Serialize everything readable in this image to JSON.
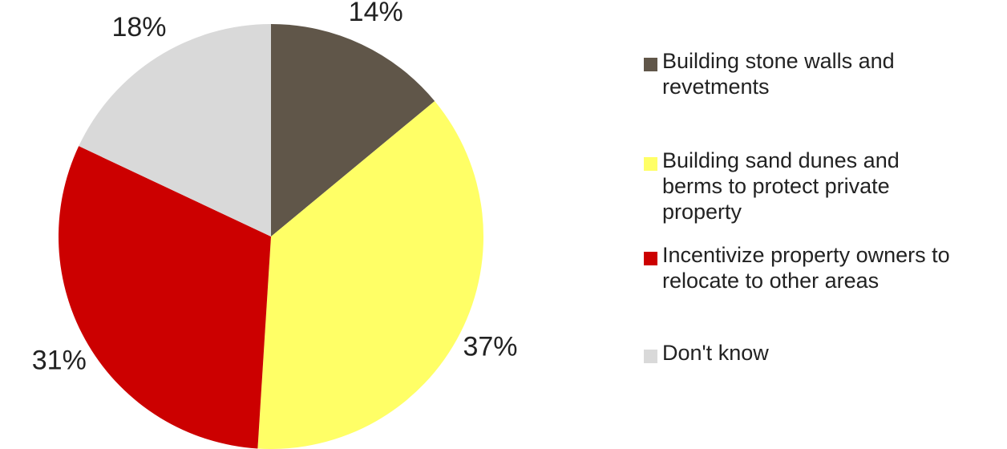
{
  "chart_data": {
    "type": "pie",
    "title": "",
    "slices": [
      {
        "label": "Building stone walls and revetments",
        "value": 14,
        "display": "14%",
        "color": "#605649"
      },
      {
        "label": "Building sand dunes and berms to protect private property",
        "value": 37,
        "display": "37%",
        "color": "#FFFF66"
      },
      {
        "label": "Incentivize property owners to relocate to other areas",
        "value": 31,
        "display": "31%",
        "color": "#CC0000"
      },
      {
        "label": "Don't know",
        "value": 18,
        "display": "18%",
        "color": "#D9D9D9"
      }
    ],
    "legend": {
      "placement": "right",
      "lines": [
        [
          "Building stone walls and",
          "revetments"
        ],
        [
          "Building sand dunes and",
          "berms to protect private",
          "property"
        ],
        [
          "Incentivize property owners to",
          "relocate to other areas"
        ],
        [
          "Don't know"
        ]
      ]
    },
    "start_angle": "12 o'clock",
    "direction": "clockwise"
  }
}
